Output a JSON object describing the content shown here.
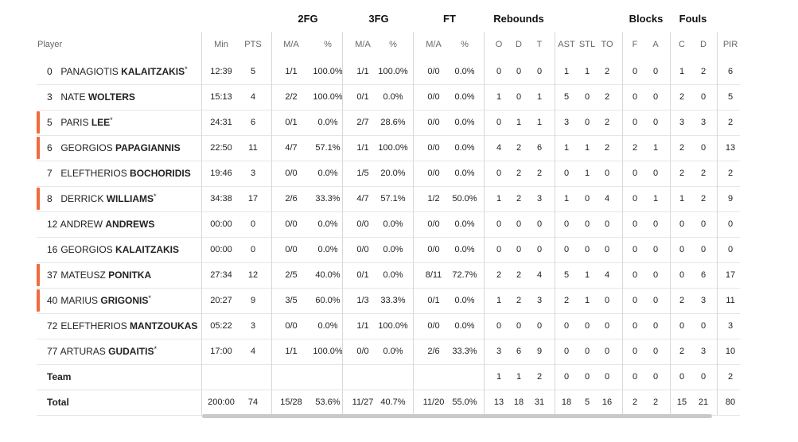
{
  "headers": {
    "groups": [
      "2FG",
      "3FG",
      "FT",
      "Rebounds",
      "Blocks",
      "Fouls"
    ],
    "columns": [
      "Player",
      "Min",
      "PTS",
      "M/A",
      "%",
      "M/A",
      "%",
      "M/A",
      "%",
      "O",
      "D",
      "T",
      "AST",
      "STL",
      "TO",
      "F",
      "A",
      "C",
      "D",
      "PIR"
    ]
  },
  "players": [
    {
      "num": "0",
      "first": "PANAGIOTIS",
      "last": "KALAITZAKIS",
      "star": "*",
      "accent": false,
      "stats": [
        "12:39",
        "5",
        "1/1",
        "100.0%",
        "1/1",
        "100.0%",
        "0/0",
        "0.0%",
        "0",
        "0",
        "0",
        "1",
        "1",
        "2",
        "0",
        "0",
        "1",
        "2",
        "6"
      ]
    },
    {
      "num": "3",
      "first": "NATE",
      "last": "WOLTERS",
      "star": "",
      "accent": false,
      "stats": [
        "15:13",
        "4",
        "2/2",
        "100.0%",
        "0/1",
        "0.0%",
        "0/0",
        "0.0%",
        "1",
        "0",
        "1",
        "5",
        "0",
        "2",
        "0",
        "0",
        "2",
        "0",
        "5"
      ]
    },
    {
      "num": "5",
      "first": "PARIS",
      "last": "LEE",
      "star": "*",
      "accent": true,
      "stats": [
        "24:31",
        "6",
        "0/1",
        "0.0%",
        "2/7",
        "28.6%",
        "0/0",
        "0.0%",
        "0",
        "1",
        "1",
        "3",
        "0",
        "2",
        "0",
        "0",
        "3",
        "3",
        "2"
      ]
    },
    {
      "num": "6",
      "first": "GEORGIOS",
      "last": "PAPAGIANNIS",
      "star": "",
      "accent": true,
      "stats": [
        "22:50",
        "11",
        "4/7",
        "57.1%",
        "1/1",
        "100.0%",
        "0/0",
        "0.0%",
        "4",
        "2",
        "6",
        "1",
        "1",
        "2",
        "2",
        "1",
        "2",
        "0",
        "13"
      ]
    },
    {
      "num": "7",
      "first": "ELEFTHERIOS",
      "last": "BOCHORIDIS",
      "star": "",
      "accent": false,
      "stats": [
        "19:46",
        "3",
        "0/0",
        "0.0%",
        "1/5",
        "20.0%",
        "0/0",
        "0.0%",
        "0",
        "2",
        "2",
        "0",
        "1",
        "0",
        "0",
        "0",
        "2",
        "2",
        "2"
      ]
    },
    {
      "num": "8",
      "first": "DERRICK",
      "last": "WILLIAMS",
      "star": "*",
      "accent": true,
      "stats": [
        "34:38",
        "17",
        "2/6",
        "33.3%",
        "4/7",
        "57.1%",
        "1/2",
        "50.0%",
        "1",
        "2",
        "3",
        "1",
        "0",
        "4",
        "0",
        "1",
        "1",
        "2",
        "9"
      ]
    },
    {
      "num": "12",
      "first": "ANDREW",
      "last": "ANDREWS",
      "star": "",
      "accent": false,
      "stats": [
        "00:00",
        "0",
        "0/0",
        "0.0%",
        "0/0",
        "0.0%",
        "0/0",
        "0.0%",
        "0",
        "0",
        "0",
        "0",
        "0",
        "0",
        "0",
        "0",
        "0",
        "0",
        "0"
      ]
    },
    {
      "num": "16",
      "first": "GEORGIOS",
      "last": "KALAITZAKIS",
      "star": "",
      "accent": false,
      "stats": [
        "00:00",
        "0",
        "0/0",
        "0.0%",
        "0/0",
        "0.0%",
        "0/0",
        "0.0%",
        "0",
        "0",
        "0",
        "0",
        "0",
        "0",
        "0",
        "0",
        "0",
        "0",
        "0"
      ]
    },
    {
      "num": "37",
      "first": "MATEUSZ",
      "last": "PONITKA",
      "star": "",
      "accent": true,
      "stats": [
        "27:34",
        "12",
        "2/5",
        "40.0%",
        "0/1",
        "0.0%",
        "8/11",
        "72.7%",
        "2",
        "2",
        "4",
        "5",
        "1",
        "4",
        "0",
        "0",
        "0",
        "6",
        "17"
      ]
    },
    {
      "num": "40",
      "first": "MARIUS",
      "last": "GRIGONIS",
      "star": "*",
      "accent": true,
      "stats": [
        "20:27",
        "9",
        "3/5",
        "60.0%",
        "1/3",
        "33.3%",
        "0/1",
        "0.0%",
        "1",
        "2",
        "3",
        "2",
        "1",
        "0",
        "0",
        "0",
        "2",
        "3",
        "11"
      ]
    },
    {
      "num": "72",
      "first": "ELEFTHERIOS",
      "last": "MANTZOUKAS",
      "star": "",
      "accent": false,
      "stats": [
        "05:22",
        "3",
        "0/0",
        "0.0%",
        "1/1",
        "100.0%",
        "0/0",
        "0.0%",
        "0",
        "0",
        "0",
        "0",
        "0",
        "0",
        "0",
        "0",
        "0",
        "0",
        "3"
      ]
    },
    {
      "num": "77",
      "first": "ARTURAS",
      "last": "GUDAITIS",
      "star": "*",
      "accent": false,
      "stats": [
        "17:00",
        "4",
        "1/1",
        "100.0%",
        "0/0",
        "0.0%",
        "2/6",
        "33.3%",
        "3",
        "6",
        "9",
        "0",
        "0",
        "0",
        "0",
        "0",
        "2",
        "3",
        "10"
      ]
    }
  ],
  "team": {
    "label": "Team",
    "stats": [
      "",
      "",
      "",
      "",
      "",
      "",
      "",
      "",
      "1",
      "1",
      "2",
      "0",
      "0",
      "0",
      "0",
      "0",
      "0",
      "0",
      "2"
    ]
  },
  "total": {
    "label": "Total",
    "stats": [
      "200:00",
      "74",
      "15/28",
      "53.6%",
      "11/27",
      "40.7%",
      "11/20",
      "55.0%",
      "13",
      "18",
      "31",
      "18",
      "5",
      "16",
      "2",
      "2",
      "15",
      "21",
      "80"
    ]
  }
}
